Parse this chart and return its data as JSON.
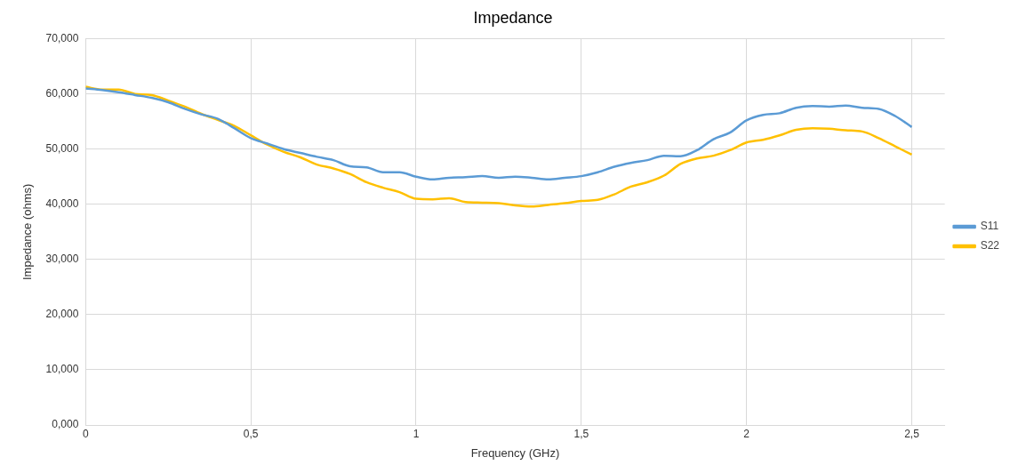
{
  "chart_data": {
    "type": "line",
    "title": "Impedance",
    "xlabel": "Frequency (GHz)",
    "ylabel": "Impedance (ohms)",
    "x": [
      0,
      0.05,
      0.1,
      0.15,
      0.2,
      0.25,
      0.3,
      0.35,
      0.4,
      0.45,
      0.5,
      0.55,
      0.6,
      0.65,
      0.7,
      0.75,
      0.8,
      0.85,
      0.9,
      0.95,
      1,
      1.05,
      1.1,
      1.15,
      1.2,
      1.25,
      1.3,
      1.35,
      1.4,
      1.45,
      1.5,
      1.55,
      1.6,
      1.65,
      1.7,
      1.75,
      1.8,
      1.85,
      1.9,
      1.95,
      2,
      2.05,
      2.1,
      2.15,
      2.2,
      2.25,
      2.3,
      2.35,
      2.4,
      2.45,
      2.5
    ],
    "series": [
      {
        "name": "S11",
        "color": "#5b9bd5",
        "values": [
          61,
          60.7,
          60.3,
          59.8,
          59.3,
          58.5,
          57.3,
          56.3,
          55.5,
          53.8,
          52,
          51,
          50,
          49.3,
          48.6,
          48,
          46.9,
          46.7,
          45.8,
          45.8,
          45,
          44.5,
          44.8,
          44.9,
          45.1,
          44.8,
          45,
          44.8,
          44.5,
          44.8,
          45.1,
          45.8,
          46.8,
          47.5,
          48,
          48.8,
          48.7,
          49.8,
          51.8,
          53,
          55.2,
          56.2,
          56.5,
          57.5,
          57.8,
          57.7,
          57.9,
          57.5,
          57.3,
          56,
          54
        ]
      },
      {
        "name": "S22",
        "color": "#ffc000",
        "values": [
          61.3,
          60.8,
          60.8,
          60,
          59.8,
          58.8,
          57.7,
          56.4,
          55.3,
          54.2,
          52.5,
          50.8,
          49.5,
          48.5,
          47.2,
          46.5,
          45.5,
          44,
          43,
          42.2,
          41,
          40.9,
          41.1,
          40.4,
          40.3,
          40.2,
          39.8,
          39.6,
          39.9,
          40.2,
          40.6,
          40.8,
          41.8,
          43.2,
          44,
          45.2,
          47.3,
          48.3,
          48.8,
          49.8,
          51.2,
          51.7,
          52.5,
          53.5,
          53.8,
          53.7,
          53.4,
          53.2,
          52,
          50.5,
          49
        ]
      }
    ],
    "xlim": [
      0,
      2.6
    ],
    "xticks": [
      0,
      {
        "value": 0.5,
        "label": "0,5"
      },
      1,
      {
        "value": 1.5,
        "label": "1,5"
      },
      2,
      {
        "value": 2.5,
        "label": "2,5"
      }
    ],
    "ylim": [
      0,
      70
    ],
    "yticks": [
      {
        "value": 0,
        "label": "0,000"
      },
      {
        "value": 10,
        "label": "10,000"
      },
      {
        "value": 20,
        "label": "20,000"
      },
      {
        "value": 30,
        "label": "30,000"
      },
      {
        "value": 40,
        "label": "40,000"
      },
      {
        "value": 50,
        "label": "50,000"
      },
      {
        "value": 60,
        "label": "60,000"
      },
      {
        "value": 70,
        "label": "70,000"
      }
    ],
    "grid": true,
    "legend": "right",
    "marker": "none",
    "line_style": "solid"
  }
}
